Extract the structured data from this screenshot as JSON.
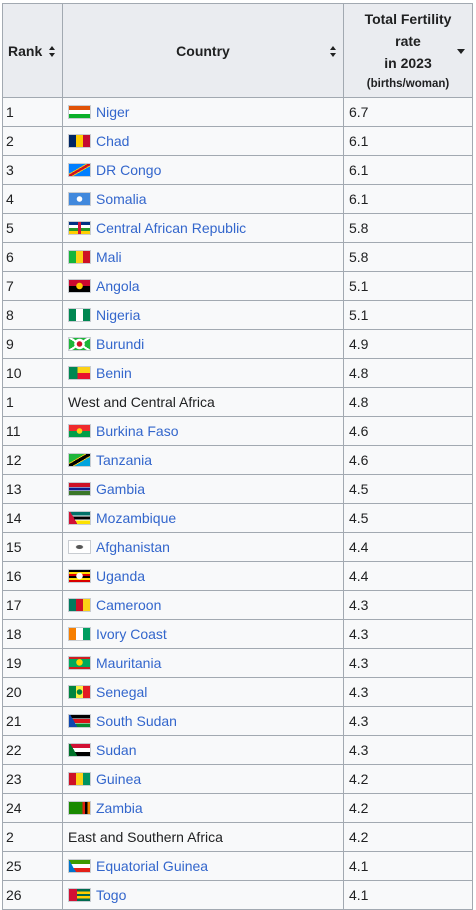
{
  "table": {
    "headers": {
      "rank": "Rank",
      "country": "Country",
      "rate_line1": "Total Fertility",
      "rate_line2": "rate",
      "rate_line3": "in 2023",
      "rate_unit": "(births/woman)"
    },
    "rows": [
      {
        "rank": "1",
        "country": "Niger",
        "rate": "6.7",
        "link": true,
        "flag": "niger-flag"
      },
      {
        "rank": "2",
        "country": "Chad",
        "rate": "6.1",
        "link": true,
        "flag": "chad-flag"
      },
      {
        "rank": "3",
        "country": "DR Congo",
        "rate": "6.1",
        "link": true,
        "flag": "dr-congo-flag"
      },
      {
        "rank": "4",
        "country": "Somalia",
        "rate": "6.1",
        "link": true,
        "flag": "somalia-flag"
      },
      {
        "rank": "5",
        "country": "Central African Republic",
        "rate": "5.8",
        "link": true,
        "flag": "central-african-republic-flag"
      },
      {
        "rank": "6",
        "country": "Mali",
        "rate": "5.8",
        "link": true,
        "flag": "mali-flag"
      },
      {
        "rank": "7",
        "country": "Angola",
        "rate": "5.1",
        "link": true,
        "flag": "angola-flag"
      },
      {
        "rank": "8",
        "country": "Nigeria",
        "rate": "5.1",
        "link": true,
        "flag": "nigeria-flag"
      },
      {
        "rank": "9",
        "country": "Burundi",
        "rate": "4.9",
        "link": true,
        "flag": "burundi-flag"
      },
      {
        "rank": "10",
        "country": "Benin",
        "rate": "4.8",
        "link": true,
        "flag": "benin-flag"
      },
      {
        "rank": "1",
        "country": "West and Central Africa",
        "rate": "4.8",
        "link": false,
        "flag": ""
      },
      {
        "rank": "11",
        "country": "Burkina Faso",
        "rate": "4.6",
        "link": true,
        "flag": "burkina-faso-flag"
      },
      {
        "rank": "12",
        "country": "Tanzania",
        "rate": "4.6",
        "link": true,
        "flag": "tanzania-flag"
      },
      {
        "rank": "13",
        "country": "Gambia",
        "rate": "4.5",
        "link": true,
        "flag": "gambia-flag"
      },
      {
        "rank": "14",
        "country": "Mozambique",
        "rate": "4.5",
        "link": true,
        "flag": "mozambique-flag"
      },
      {
        "rank": "15",
        "country": "Afghanistan",
        "rate": "4.4",
        "link": true,
        "flag": "afghanistan-flag"
      },
      {
        "rank": "16",
        "country": "Uganda",
        "rate": "4.4",
        "link": true,
        "flag": "uganda-flag"
      },
      {
        "rank": "17",
        "country": "Cameroon",
        "rate": "4.3",
        "link": true,
        "flag": "cameroon-flag"
      },
      {
        "rank": "18",
        "country": "Ivory Coast",
        "rate": "4.3",
        "link": true,
        "flag": "ivory-coast-flag"
      },
      {
        "rank": "19",
        "country": "Mauritania",
        "rate": "4.3",
        "link": true,
        "flag": "mauritania-flag"
      },
      {
        "rank": "20",
        "country": "Senegal",
        "rate": "4.3",
        "link": true,
        "flag": "senegal-flag"
      },
      {
        "rank": "21",
        "country": "South Sudan",
        "rate": "4.3",
        "link": true,
        "flag": "south-sudan-flag"
      },
      {
        "rank": "22",
        "country": "Sudan",
        "rate": "4.3",
        "link": true,
        "flag": "sudan-flag"
      },
      {
        "rank": "23",
        "country": "Guinea",
        "rate": "4.2",
        "link": true,
        "flag": "guinea-flag"
      },
      {
        "rank": "24",
        "country": "Zambia",
        "rate": "4.2",
        "link": true,
        "flag": "zambia-flag"
      },
      {
        "rank": "2",
        "country": "East and Southern Africa",
        "rate": "4.2",
        "link": false,
        "flag": ""
      },
      {
        "rank": "25",
        "country": "Equatorial Guinea",
        "rate": "4.1",
        "link": true,
        "flag": "equatorial-guinea-flag"
      },
      {
        "rank": "26",
        "country": "Togo",
        "rate": "4.1",
        "link": true,
        "flag": "togo-flag"
      }
    ]
  },
  "colors": {
    "link": "#3366cc",
    "header_bg": "#eaecf0",
    "cell_bg": "#f8f9fa",
    "border": "#a2a9b1"
  }
}
